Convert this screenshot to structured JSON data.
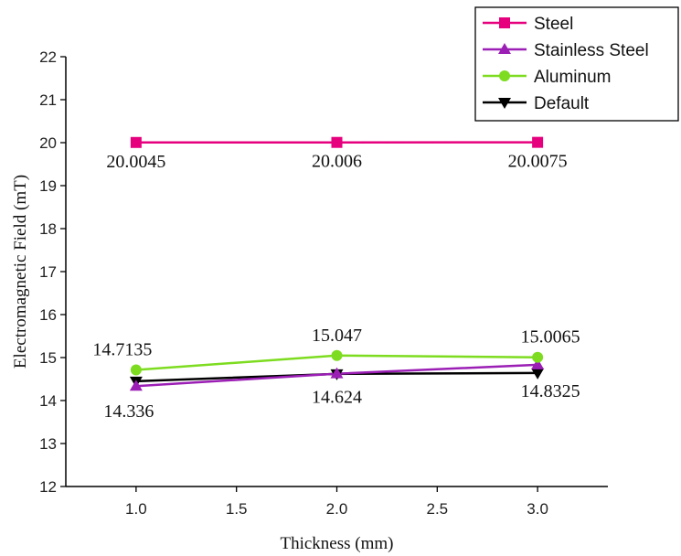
{
  "chart_data": {
    "type": "line",
    "xlabel": "Thickness (mm)",
    "ylabel": "Electromagnetic Field (mT)",
    "xlim": [
      0.65,
      3.35
    ],
    "ylim": [
      12,
      22
    ],
    "x_ticks": [
      "1.0",
      "1.5",
      "2.0",
      "2.5",
      "3.0"
    ],
    "y_ticks": [
      "12",
      "13",
      "14",
      "15",
      "16",
      "17",
      "18",
      "19",
      "20",
      "21",
      "22"
    ],
    "x": [
      1.0,
      2.0,
      3.0
    ],
    "grid": false,
    "legend_position": "top-right",
    "series": [
      {
        "name": "Steel",
        "values": [
          20.0045,
          20.006,
          20.0075
        ],
        "color": "#e6007e",
        "marker": "square",
        "labels": [
          "20.0045",
          "20.006",
          "20.0075"
        ]
      },
      {
        "name": "Stainless Steel",
        "values": [
          14.336,
          14.624,
          14.8325
        ],
        "color": "#9b1fb5",
        "marker": "triangle-up",
        "labels": [
          "14.336",
          "14.624",
          "14.8325"
        ]
      },
      {
        "name": "Aluminum",
        "values": [
          14.7135,
          15.047,
          15.0065
        ],
        "color": "#7ddc1f",
        "marker": "circle",
        "labels": [
          "14.7135",
          "15.047",
          "15.0065"
        ]
      },
      {
        "name": "Default",
        "values": [
          14.45,
          14.62,
          14.64
        ],
        "color": "#000000",
        "marker": "triangle-down",
        "labels": []
      }
    ]
  }
}
